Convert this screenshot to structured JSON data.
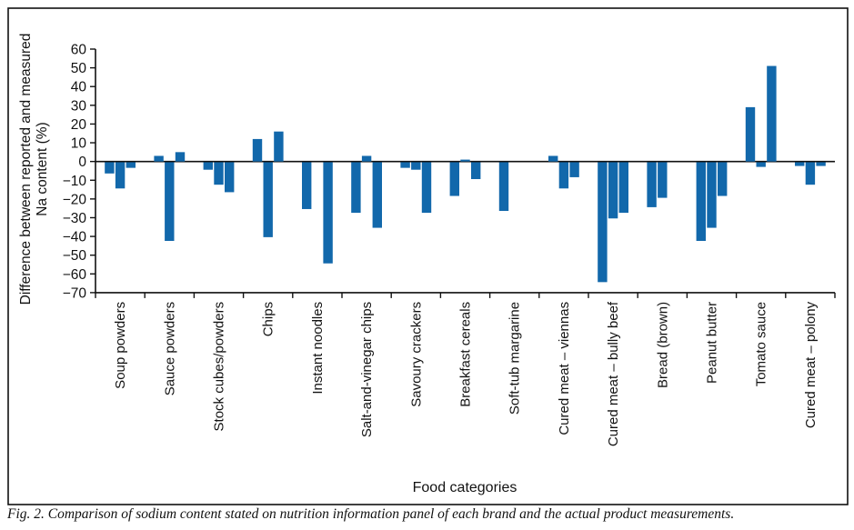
{
  "figure": {
    "caption": "Fig. 2. Comparison of sodium content stated on nutrition information panel of each brand and the actual product measurements."
  },
  "chart_data": {
    "type": "bar",
    "title": "",
    "xlabel": "Food categories",
    "ylabel": "Difference between reported and measured Na content (%)",
    "ylabel_line1": "Difference between reported and measured",
    "ylabel_line2": "Na content (%)",
    "ylim": [
      -70,
      60
    ],
    "yticks": [
      60,
      50,
      40,
      30,
      20,
      10,
      0,
      -10,
      -20,
      -30,
      -40,
      -50,
      -60,
      -70
    ],
    "grid": false,
    "legend": false,
    "bar_color": "#1268ab",
    "axis_color": "#111111",
    "bars_per_category": 3,
    "categories": [
      "Soup powders",
      "Sauce powders",
      "Stock cubes/powders",
      "Chips",
      "Instant noodles",
      "Salt-and-vinegar chips",
      "Savoury crackers",
      "Breakfast cereals",
      "Soft-tub margarine",
      "Cured meat – viennas",
      "Cured meat – bully beef",
      "Bread (brown)",
      "Peanut butter",
      "Tomato sauce",
      "Cured meat – polony"
    ],
    "groups": [
      {
        "category": "Soup powders",
        "values": [
          -6,
          -14,
          -3
        ]
      },
      {
        "category": "Sauce powders",
        "values": [
          3,
          -42,
          5
        ]
      },
      {
        "category": "Stock cubes/powders",
        "values": [
          -4,
          -12,
          -16
        ]
      },
      {
        "category": "Chips",
        "values": [
          12,
          -40,
          16
        ]
      },
      {
        "category": "Instant noodles",
        "values": [
          -25,
          0,
          -54
        ]
      },
      {
        "category": "Salt-and-vinegar chips",
        "values": [
          -27,
          3,
          -35
        ]
      },
      {
        "category": "Savoury crackers",
        "values": [
          -3,
          -4,
          -27
        ]
      },
      {
        "category": "Breakfast cereals",
        "values": [
          -18,
          1,
          -9
        ]
      },
      {
        "category": "Soft-tub margarine",
        "values": [
          -26,
          0,
          0
        ]
      },
      {
        "category": "Cured meat – viennas",
        "values": [
          3,
          -14,
          -8
        ]
      },
      {
        "category": "Cured meat – bully beef",
        "values": [
          -64,
          -30,
          -27
        ]
      },
      {
        "category": "Bread (brown)",
        "values": [
          -24,
          -19,
          0
        ]
      },
      {
        "category": "Peanut butter",
        "values": [
          -42,
          -35,
          -18
        ]
      },
      {
        "category": "Tomato sauce",
        "values": [
          29,
          -2.5,
          51
        ]
      },
      {
        "category": "Cured meat – polony",
        "values": [
          -2,
          -12,
          -2
        ]
      }
    ]
  }
}
